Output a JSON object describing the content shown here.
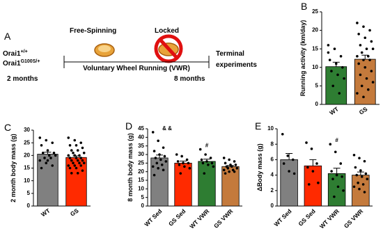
{
  "diagram": {
    "panel_label": "A",
    "left_label": "Free-Spinning",
    "right_label": "Locked",
    "genotypes": [
      {
        "base": "Orai1",
        "sup": "+/+"
      },
      {
        "base": "Orai1",
        "sup": "G100S/+"
      }
    ],
    "timeline": "Voluntary Wheel Running (VWR)",
    "start": "2 months",
    "end": "8 months",
    "terminal": [
      "Terminal",
      "experiments"
    ]
  },
  "chart_data": [
    {
      "type": "bar",
      "panel_label": "B",
      "y_label": "Running activity (km/day)",
      "categories": [
        "WT",
        "GS"
      ],
      "values": [
        10.2,
        12.2
      ],
      "errors": [
        1.2,
        1.1
      ],
      "colors": [
        "#2e7d32",
        "#c47a3c"
      ],
      "points": [
        [
          16,
          15,
          13,
          12,
          11,
          10,
          9,
          8,
          7,
          5,
          3,
          14
        ],
        [
          22,
          21,
          20,
          19,
          18,
          17,
          16,
          15,
          15,
          14,
          13,
          13,
          12,
          12,
          11,
          10,
          9,
          8,
          7,
          6,
          5,
          4,
          3,
          2
        ]
      ],
      "ylim": [
        0,
        25
      ],
      "yticks": [
        0,
        5,
        10,
        15,
        20,
        25
      ]
    },
    {
      "type": "bar",
      "panel_label": "C",
      "y_label": "2 month body mass (g)",
      "categories": [
        "WT",
        "GS"
      ],
      "values": [
        20.5,
        19.2
      ],
      "errors": [
        0.8,
        0.6
      ],
      "colors": [
        "#808080",
        "#ff2a00"
      ],
      "points": [
        [
          27,
          26,
          25,
          24,
          22,
          21,
          21,
          20,
          20,
          19,
          19,
          18,
          17,
          16,
          15,
          18
        ],
        [
          27,
          26,
          25,
          24,
          24,
          23,
          22,
          22,
          21,
          21,
          20,
          20,
          20,
          19,
          19,
          19,
          18,
          18,
          18,
          17,
          17,
          17,
          16,
          16,
          16,
          15,
          15,
          14,
          13,
          13
        ]
      ],
      "ylim": [
        0,
        30
      ],
      "yticks": [
        0,
        5,
        10,
        15,
        20,
        25,
        30
      ]
    },
    {
      "type": "bar",
      "panel_label": "D",
      "y_label": "8 month body mass (g)",
      "categories": [
        "WT Sed",
        "GS Sed",
        "WT VWR",
        "GS VWR"
      ],
      "values": [
        28,
        25,
        26,
        23
      ],
      "errors": [
        1.7,
        1.2,
        1.3,
        0.6
      ],
      "colors": [
        "#808080",
        "#ff2a00",
        "#2e7d32",
        "#c47a3c"
      ],
      "annotations": [
        "& &",
        null,
        "#",
        null
      ],
      "points": [
        [
          43,
          38,
          34,
          32,
          30,
          29,
          28,
          27,
          26,
          25,
          24,
          23,
          22,
          21,
          18
        ],
        [
          30,
          29,
          27,
          26,
          25,
          25,
          24,
          23,
          22,
          19
        ],
        [
          33,
          30,
          28,
          27,
          26,
          25,
          25,
          24,
          23,
          19
        ],
        [
          28,
          27,
          26,
          25,
          24,
          24,
          23,
          23,
          22,
          22,
          21,
          21,
          20,
          20,
          19
        ]
      ],
      "ylim": [
        0,
        45
      ],
      "yticks": [
        0,
        5,
        10,
        15,
        20,
        25,
        30,
        35,
        40,
        45
      ]
    },
    {
      "type": "bar",
      "panel_label": "E",
      "y_label": "ΔBody mass (g)",
      "categories": [
        "WT Sed",
        "GS Sed",
        "WT VWR",
        "GS VWR"
      ],
      "values": [
        6.0,
        5.2,
        4.2,
        4.0
      ],
      "errors": [
        0.8,
        0.8,
        0.7,
        0.4
      ],
      "colors": [
        "#808080",
        "#ff2a00",
        "#2e7d32",
        "#c47a3c"
      ],
      "annotations": [
        null,
        null,
        "#",
        null
      ],
      "points": [
        [
          9.3,
          6.5,
          6,
          5.5,
          4.5,
          4.2
        ],
        [
          8.2,
          7.4,
          5.5,
          5,
          4.5,
          3,
          2.8
        ],
        [
          8,
          7,
          5.5,
          4.5,
          4,
          3.8,
          3.5,
          2.5,
          2,
          1.2
        ],
        [
          6.6,
          6.2,
          5.8,
          5,
          4.6,
          4.2,
          4,
          3.8,
          3.5,
          3,
          2.8,
          2.5,
          2.2,
          1.8
        ]
      ],
      "ylim": [
        0,
        10
      ],
      "yticks": [
        0,
        2,
        4,
        6,
        8,
        10
      ]
    }
  ]
}
